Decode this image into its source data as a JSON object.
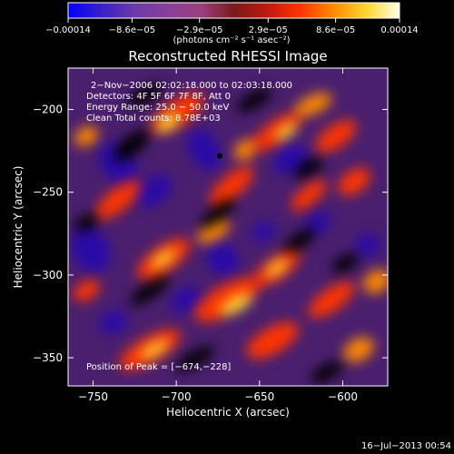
{
  "chart_data": {
    "type": "heatmap",
    "title": "Reconstructed RHESSI Image",
    "xlabel": "Heliocentric X (arcsec)",
    "ylabel": "Heliocentric Y (arcsec)",
    "xlim": [
      -765,
      -573
    ],
    "ylim": [
      -367,
      -175
    ],
    "x_ticks": [
      -750,
      -700,
      -650,
      -600
    ],
    "x_tick_labels": [
      "−750",
      "−700",
      "−650",
      "−600"
    ],
    "y_ticks": [
      -200,
      -250,
      -300,
      -350
    ],
    "y_tick_labels": [
      "−200",
      "−250",
      "−300",
      "−350"
    ],
    "colorbar": {
      "min": -0.00014,
      "max": 0.00014,
      "ticks": [
        -0.00014,
        -8.6e-05,
        -2.9e-05,
        2.9e-05,
        8.6e-05,
        0.00014
      ],
      "tick_labels": [
        "−0.00014",
        "−8.6e−05",
        "−2.9e−05",
        "2.9e−05",
        "8.6e−05",
        "0.00014"
      ],
      "unit_label": "(photons cm⁻² s⁻¹ asec⁻²)",
      "colormap": [
        "#0000ff",
        "#3a1fc8",
        "#6c3aa8",
        "#8a3f9a",
        "#9c3f7e",
        "#7a1a1a",
        "#c01810",
        "#ff3500",
        "#ff8a00",
        "#ffd630",
        "#ffffe6"
      ]
    },
    "annotations": [
      "2−Nov−2006 02:02:18.000 to 02:03:18.000",
      "Detectors: 4F 5F 6F 7F 8F, Att 0",
      "Energy Range: 25.0 − 50.0 keV",
      "Clean    Total counts: 8.78E+03"
    ],
    "peak_label": "Position of Peak = [−674,−228]",
    "peak": {
      "x": -674,
      "y": -228
    },
    "grid": false
  },
  "timestamp": "16−Jul−2013 00:54"
}
